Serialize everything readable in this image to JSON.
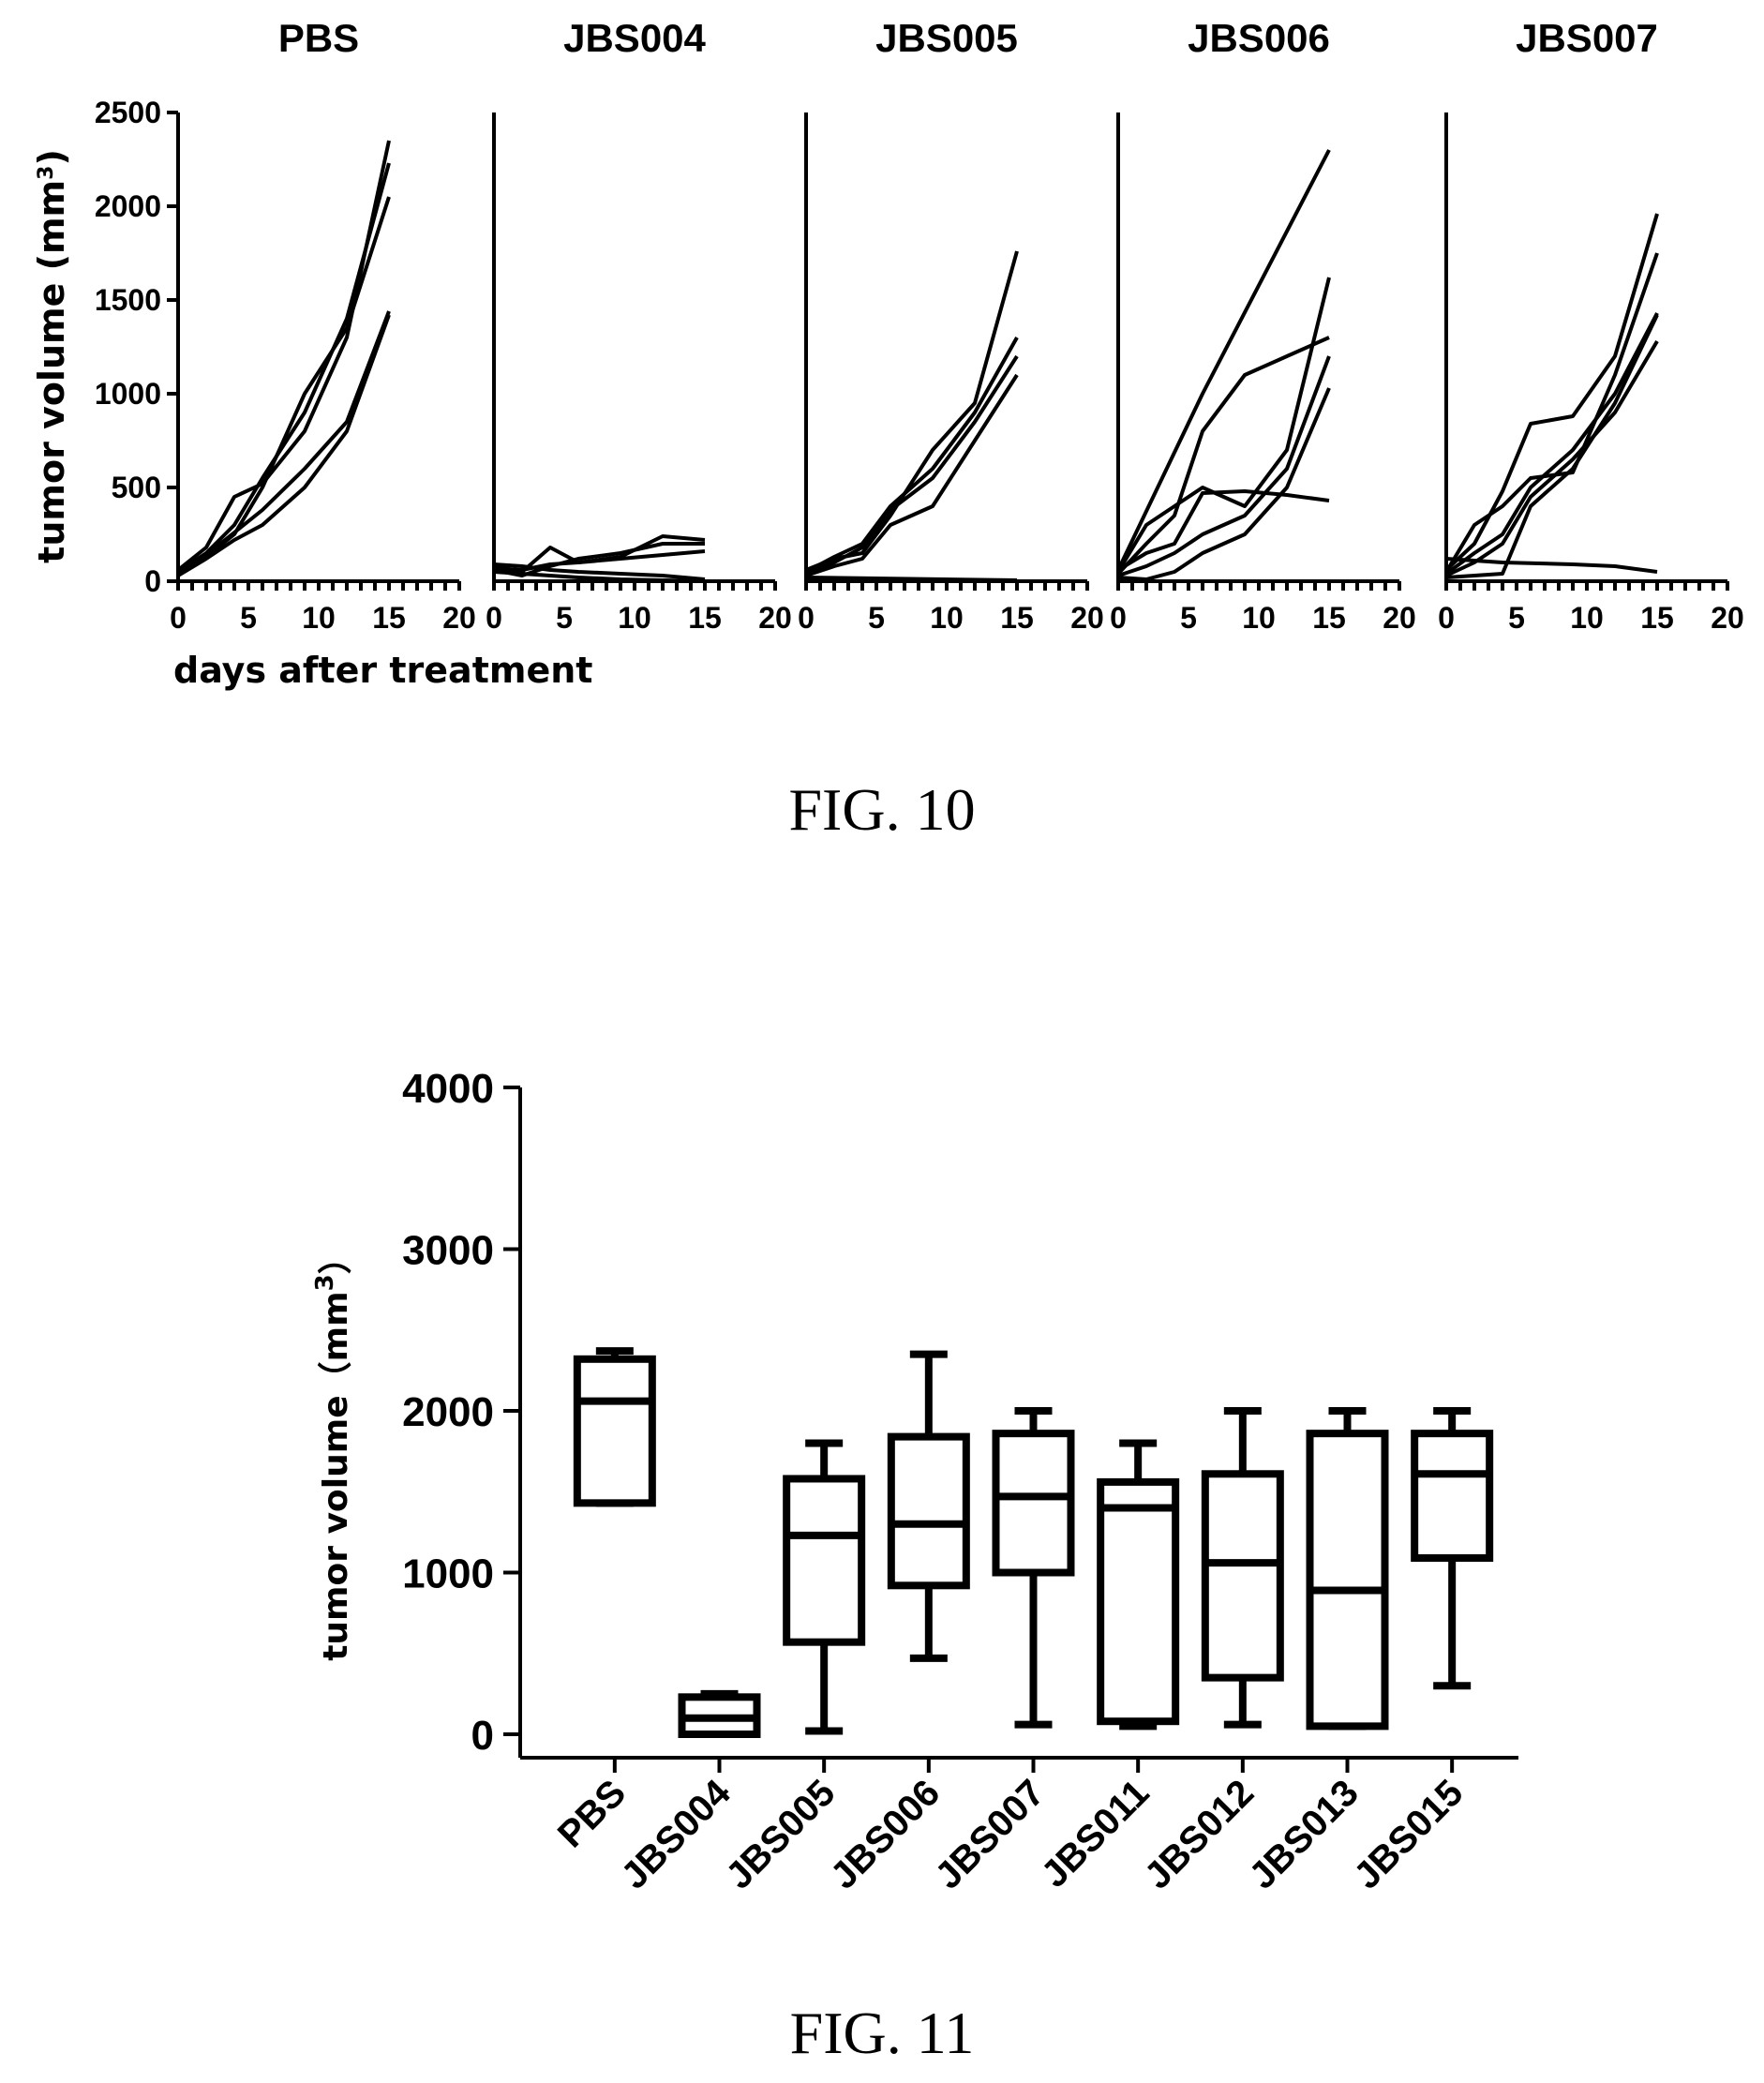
{
  "chart_data": [
    {
      "type": "line",
      "x_axis": {
        "title": "days after treatment",
        "ticks": [
          0,
          5,
          10,
          15,
          20
        ],
        "range": [
          0,
          20
        ]
      },
      "y_axis": {
        "title": "tumor volume (mm",
        "title_superscript": "3",
        "title_close": ")",
        "ticks": [
          0,
          500,
          1000,
          1500,
          2000,
          2500
        ],
        "range": [
          0,
          2500
        ]
      },
      "panels": [
        {
          "title": "PBS",
          "series": [
            {
              "x": [
                0,
                2,
                4,
                6,
                9,
                12,
                15
              ],
              "y": [
                60,
                180,
                450,
                520,
                800,
                1300,
                2350
              ]
            },
            {
              "x": [
                0,
                2,
                4,
                6,
                9,
                12,
                15
              ],
              "y": [
                50,
                150,
                300,
                550,
                900,
                1400,
                2230
              ]
            },
            {
              "x": [
                0,
                2,
                4,
                6,
                9,
                12,
                15
              ],
              "y": [
                40,
                130,
                250,
                500,
                1000,
                1350,
                2050
              ]
            },
            {
              "x": [
                0,
                2,
                4,
                6,
                9,
                12,
                15
              ],
              "y": [
                50,
                140,
                260,
                380,
                600,
                850,
                1440
              ]
            },
            {
              "x": [
                0,
                2,
                4,
                6,
                9,
                12,
                15
              ],
              "y": [
                30,
                120,
                220,
                300,
                500,
                800,
                1420
              ]
            }
          ]
        },
        {
          "title": "JBS004",
          "series": [
            {
              "x": [
                0,
                2,
                4,
                6,
                9,
                12,
                15
              ],
              "y": [
                80,
                50,
                180,
                100,
                130,
                240,
                220
              ]
            },
            {
              "x": [
                0,
                2,
                4,
                6,
                9,
                12,
                15
              ],
              "y": [
                60,
                30,
                80,
                120,
                150,
                200,
                200
              ]
            },
            {
              "x": [
                0,
                2,
                4,
                6,
                9,
                12,
                15
              ],
              "y": [
                70,
                60,
                90,
                100,
                120,
                140,
                160
              ]
            },
            {
              "x": [
                0,
                2,
                4,
                6,
                9,
                12,
                15
              ],
              "y": [
                90,
                80,
                60,
                50,
                40,
                30,
                10
              ]
            },
            {
              "x": [
                0,
                2,
                4,
                6,
                9,
                12,
                15
              ],
              "y": [
                50,
                40,
                30,
                20,
                10,
                5,
                0
              ]
            }
          ]
        },
        {
          "title": "JBS005",
          "series": [
            {
              "x": [
                0,
                2,
                4,
                6,
                9,
                12,
                15
              ],
              "y": [
                60,
                120,
                150,
                350,
                700,
                950,
                1760
              ]
            },
            {
              "x": [
                0,
                2,
                4,
                6,
                9,
                12,
                15
              ],
              "y": [
                50,
                130,
                200,
                400,
                600,
                900,
                1300
              ]
            },
            {
              "x": [
                0,
                2,
                4,
                6,
                9,
                12,
                15
              ],
              "y": [
                40,
                100,
                180,
                380,
                550,
                850,
                1200
              ]
            },
            {
              "x": [
                0,
                2,
                4,
                6,
                9,
                12,
                15
              ],
              "y": [
                30,
                80,
                120,
                300,
                400,
                750,
                1100
              ]
            },
            {
              "x": [
                0,
                15
              ],
              "y": [
                20,
                5
              ]
            }
          ]
        },
        {
          "title": "JBS006",
          "series": [
            {
              "x": [
                0,
                6,
                15
              ],
              "y": [
                60,
                1000,
                2300
              ]
            },
            {
              "x": [
                0,
                2,
                4,
                6,
                9,
                12,
                15
              ],
              "y": [
                50,
                300,
                400,
                500,
                400,
                700,
                1620
              ]
            },
            {
              "x": [
                0,
                2,
                4,
                6,
                9,
                12,
                15
              ],
              "y": [
                40,
                200,
                350,
                800,
                1100,
                1200,
                1300
              ]
            },
            {
              "x": [
                0,
                2,
                4,
                6,
                9,
                12,
                15
              ],
              "y": [
                60,
                150,
                200,
                470,
                480,
                460,
                430
              ]
            },
            {
              "x": [
                0,
                2,
                4,
                6,
                9,
                12,
                15
              ],
              "y": [
                30,
                80,
                150,
                250,
                350,
                600,
                1200
              ]
            },
            {
              "x": [
                0,
                2,
                4,
                6,
                9,
                12,
                15
              ],
              "y": [
                20,
                10,
                50,
                150,
                250,
                500,
                1030
              ]
            }
          ]
        },
        {
          "title": "JBS007",
          "series": [
            {
              "x": [
                0,
                2,
                4,
                6,
                9,
                12,
                15
              ],
              "y": [
                60,
                200,
                480,
                840,
                880,
                1200,
                1960
              ]
            },
            {
              "x": [
                0,
                2,
                4,
                6,
                9,
                12,
                15
              ],
              "y": [
                50,
                300,
                400,
                550,
                580,
                1100,
                1750
              ]
            },
            {
              "x": [
                0,
                2,
                4,
                6,
                9,
                12,
                15
              ],
              "y": [
                40,
                150,
                250,
                500,
                700,
                1000,
                1430
              ]
            },
            {
              "x": [
                0,
                2,
                4,
                6,
                9,
                12,
                15
              ],
              "y": [
                30,
                100,
                200,
                450,
                650,
                900,
                1280
              ]
            },
            {
              "x": [
                0,
                2,
                4,
                6,
                9,
                12,
                15
              ],
              "y": [
                20,
                30,
                40,
                400,
                600,
                950,
                1420
              ]
            },
            {
              "x": [
                0,
                2,
                4,
                9,
                12,
                15
              ],
              "y": [
                120,
                110,
                100,
                90,
                80,
                50
              ]
            }
          ]
        }
      ],
      "caption": "FIG. 10"
    },
    {
      "type": "box",
      "y_axis": {
        "title": "tumor volume（mm",
        "title_superscript": "3",
        "title_close": "）",
        "ticks": [
          0,
          1000,
          2000,
          3000,
          4000
        ],
        "range": [
          0,
          4000
        ]
      },
      "categories": [
        "PBS",
        "JBS004",
        "JBS005",
        "JBS006",
        "JBS007",
        "JBS011",
        "JBS012",
        "JBS013",
        "JBS015"
      ],
      "boxes": [
        {
          "min": 1430,
          "q1": 1430,
          "median": 2060,
          "q3": 2320,
          "max": 2370
        },
        {
          "min": 0,
          "q1": 0,
          "median": 100,
          "q3": 230,
          "max": 250
        },
        {
          "min": 20,
          "q1": 570,
          "median": 1230,
          "q3": 1580,
          "max": 1800
        },
        {
          "min": 470,
          "q1": 920,
          "median": 1300,
          "q3": 1840,
          "max": 2350
        },
        {
          "min": 60,
          "q1": 1000,
          "median": 1470,
          "q3": 1860,
          "max": 2000
        },
        {
          "min": 50,
          "q1": 80,
          "median": 1400,
          "q3": 1560,
          "max": 1800
        },
        {
          "min": 60,
          "q1": 350,
          "median": 1060,
          "q3": 1610,
          "max": 2000
        },
        {
          "min": 50,
          "q1": 50,
          "median": 890,
          "q3": 1860,
          "max": 2000
        },
        {
          "min": 300,
          "q1": 1090,
          "median": 1610,
          "q3": 1860,
          "max": 2000
        }
      ],
      "caption": "FIG. 11"
    }
  ]
}
